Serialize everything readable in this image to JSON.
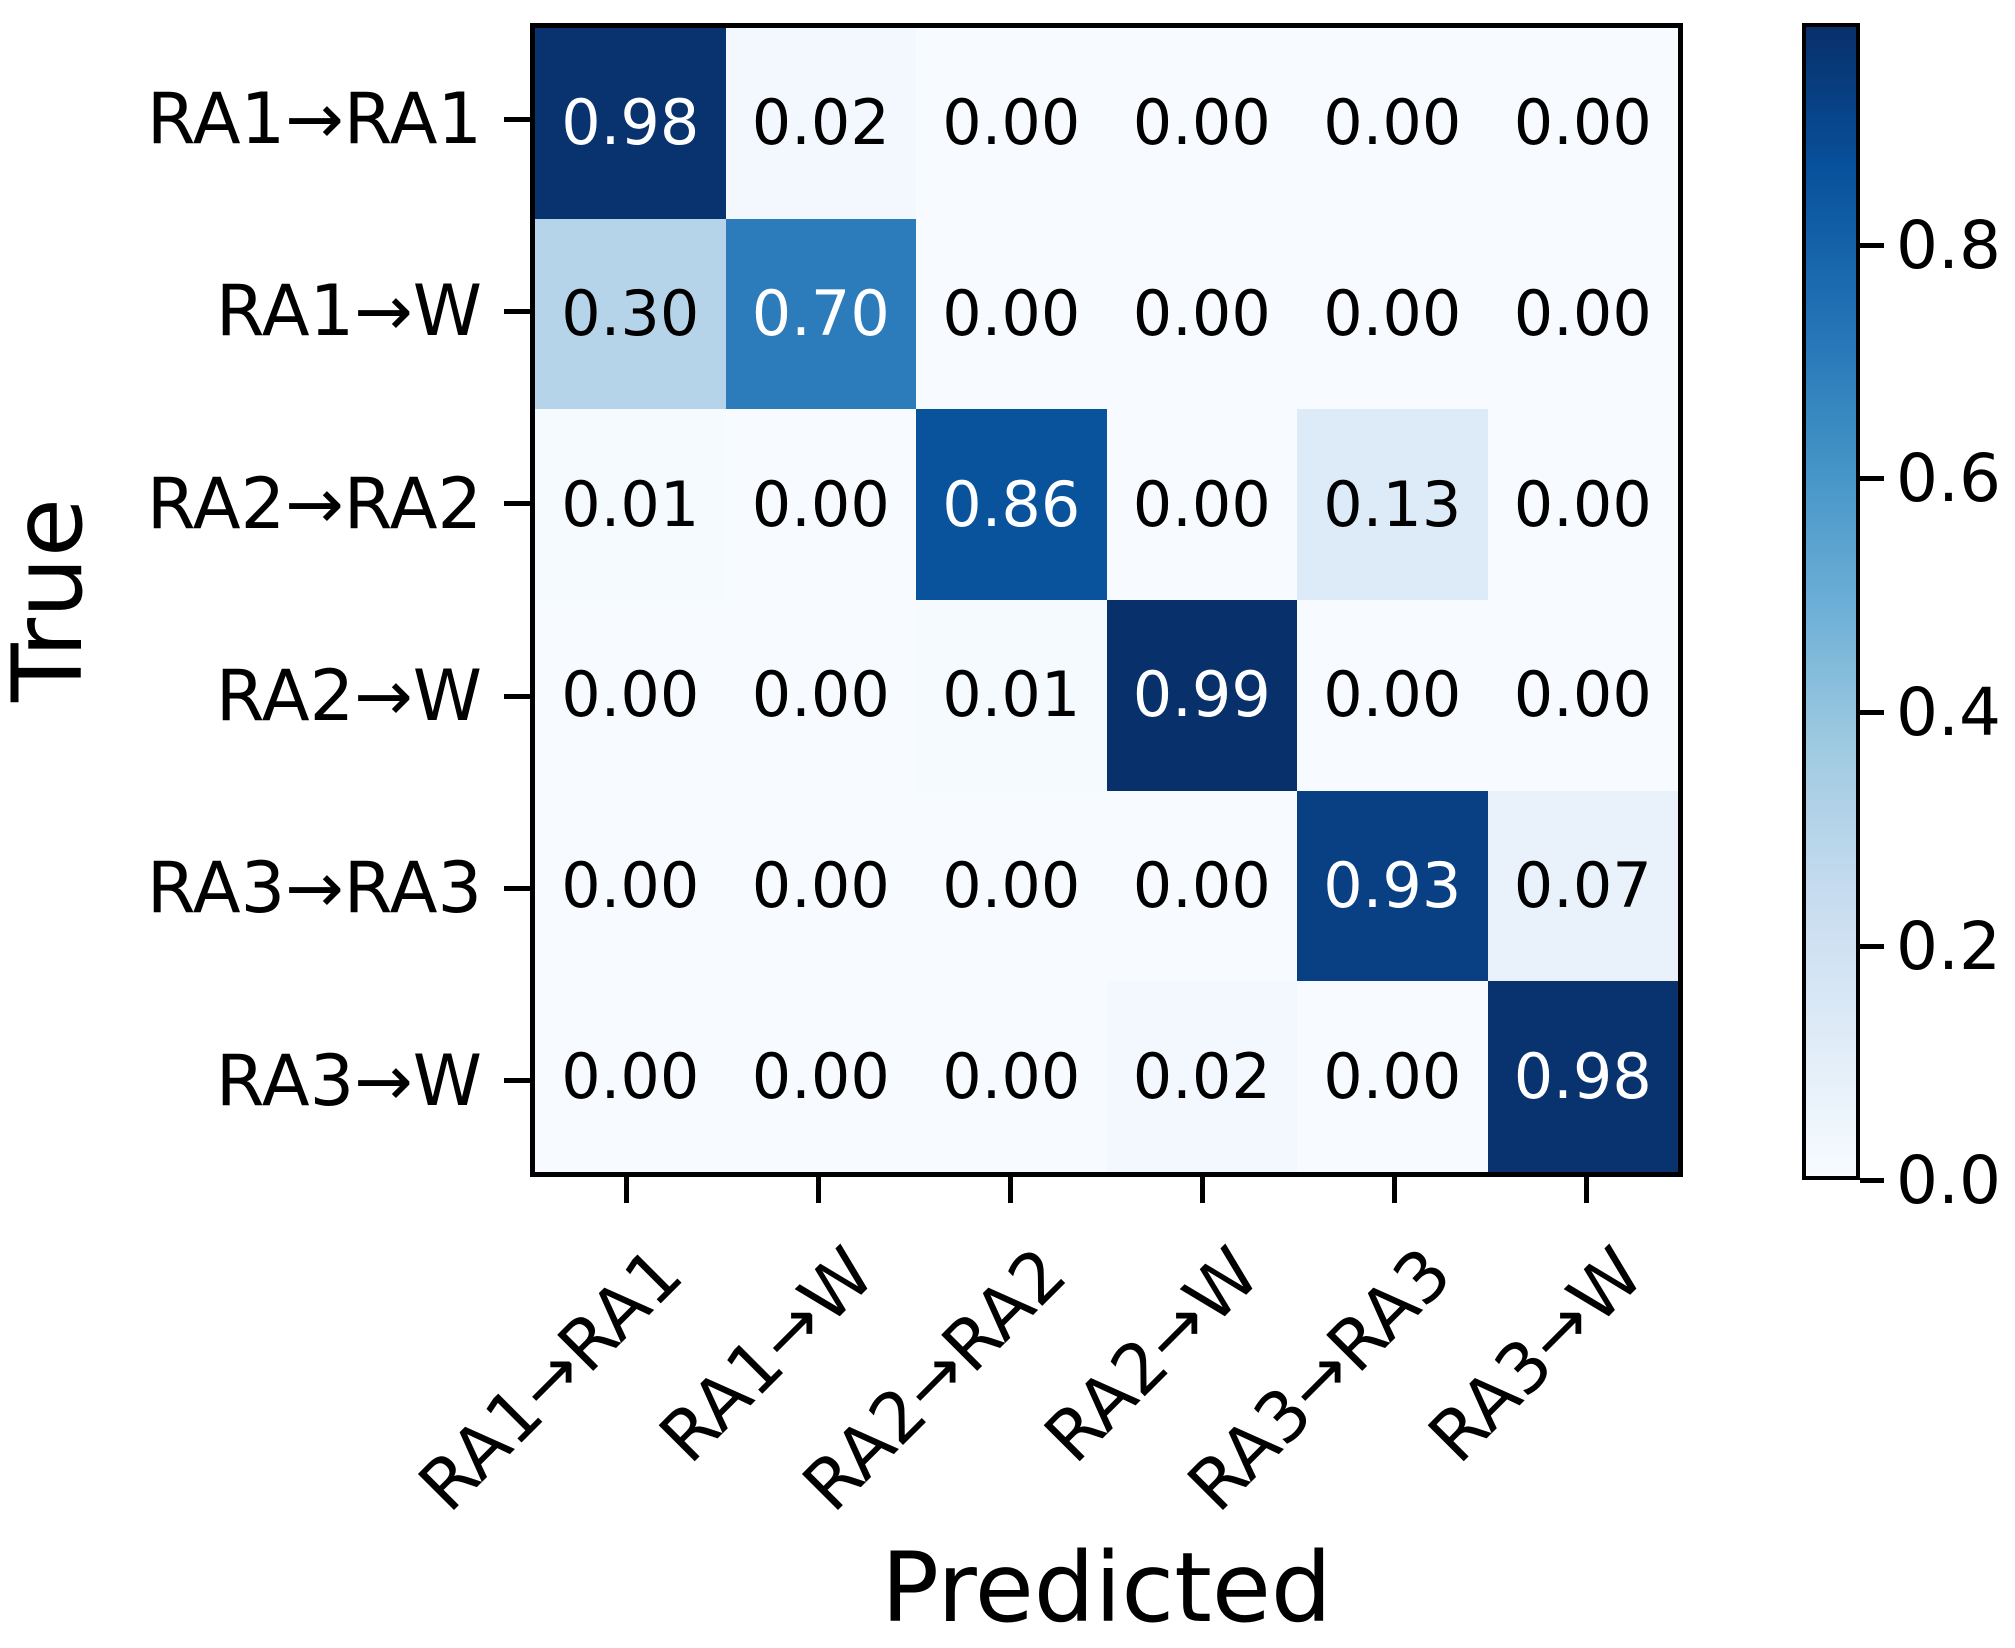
{
  "chart_data": {
    "type": "heatmap",
    "title": "",
    "xlabel": "Predicted",
    "ylabel": "True",
    "row_labels": [
      "RA1→RA1",
      "RA1→W",
      "RA2→RA2",
      "RA2→W",
      "RA3→RA3",
      "RA3→W"
    ],
    "col_labels": [
      "RA1→RA1",
      "RA1→W",
      "RA2→RA2",
      "RA2→W",
      "RA3→RA3",
      "RA3→W"
    ],
    "matrix": [
      [
        0.98,
        0.02,
        0.0,
        0.0,
        0.0,
        0.0
      ],
      [
        0.3,
        0.7,
        0.0,
        0.0,
        0.0,
        0.0
      ],
      [
        0.01,
        0.0,
        0.86,
        0.0,
        0.13,
        0.0
      ],
      [
        0.0,
        0.0,
        0.01,
        0.99,
        0.0,
        0.0
      ],
      [
        0.0,
        0.0,
        0.0,
        0.0,
        0.93,
        0.07
      ],
      [
        0.0,
        0.0,
        0.0,
        0.02,
        0.0,
        0.98
      ]
    ],
    "value_decimals": 2,
    "vmin": 0.0,
    "vmax": 0.99,
    "colormap": "Blues",
    "colormap_anchors": [
      "#f7fbff",
      "#deebf7",
      "#c6dbef",
      "#9ecae1",
      "#6baed6",
      "#4292c6",
      "#2171b5",
      "#08519c",
      "#08306b"
    ],
    "colorbar_ticks": [
      0.0,
      0.2,
      0.4,
      0.6,
      0.8
    ],
    "grid": false,
    "legend_position": "colorbar-right",
    "background": "#ffffff",
    "axis_color": "#000000",
    "cell_text_dark_color": "#000000",
    "cell_text_light_color": "#ffffff",
    "white_text_threshold_fraction": 0.5
  }
}
